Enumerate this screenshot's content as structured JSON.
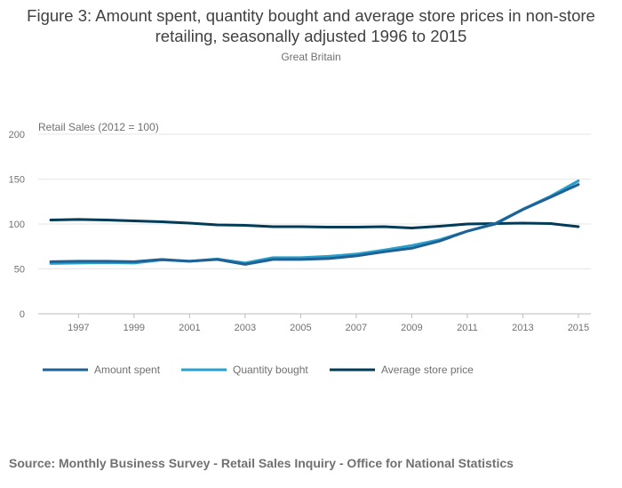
{
  "chart_data": {
    "type": "line",
    "title": "Figure 3: Amount spent, quantity bought and average store prices in non-store retailing, seasonally adjusted 1996 to 2015",
    "subtitle": "Great Britain",
    "ylabel": "Retail Sales (2012 = 100)",
    "xlabel": "",
    "x": [
      1996,
      1997,
      1998,
      1999,
      2000,
      2001,
      2002,
      2003,
      2004,
      2005,
      2006,
      2007,
      2008,
      2009,
      2010,
      2011,
      2012,
      2013,
      2014,
      2015
    ],
    "x_ticks": [
      "1997",
      "1999",
      "2001",
      "2003",
      "2005",
      "2007",
      "2009",
      "2011",
      "2013",
      "2015"
    ],
    "x_tick_values": [
      1997,
      1999,
      2001,
      2003,
      2005,
      2007,
      2009,
      2011,
      2013,
      2015
    ],
    "ylim": [
      0,
      200
    ],
    "y_ticks": [
      "0",
      "50",
      "100",
      "150",
      "200"
    ],
    "y_tick_values": [
      0,
      50,
      100,
      150,
      200
    ],
    "grid": true,
    "legend_position": "bottom",
    "series": [
      {
        "name": "Amount spent",
        "color": "#206095",
        "values": [
          58,
          58.5,
          58.5,
          58,
          60.5,
          58.5,
          60.5,
          55,
          60.5,
          60.5,
          61.5,
          64.5,
          69,
          73,
          81,
          92,
          100,
          116,
          130,
          144
        ]
      },
      {
        "name": "Quantity bought",
        "color": "#27a0cc",
        "values": [
          56,
          56.5,
          57,
          56.5,
          60,
          58.5,
          61,
          56.5,
          62.5,
          62.5,
          64,
          66.5,
          71,
          76,
          82.5,
          92,
          100.5,
          116.5,
          131,
          148
        ]
      },
      {
        "name": "Average store price",
        "color": "#003c57",
        "values": [
          104.5,
          105,
          104.5,
          103.5,
          102.5,
          101,
          99,
          98.5,
          97,
          97,
          96.5,
          96.5,
          97,
          95.5,
          97.5,
          100,
          100.5,
          101,
          100.5,
          97
        ]
      }
    ]
  },
  "source": "Source: Monthly Business Survey - Retail Sales Inquiry - Office for National Statistics"
}
